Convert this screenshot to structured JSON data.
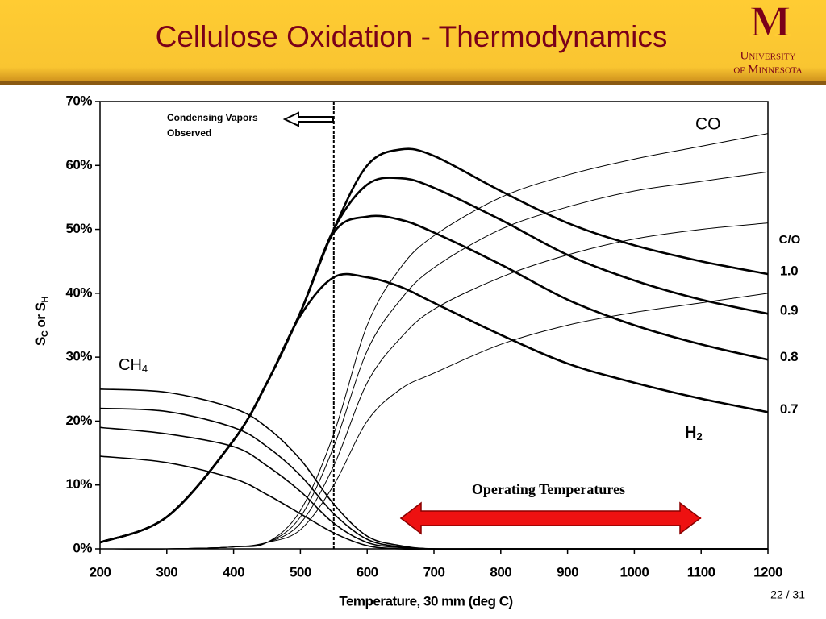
{
  "header": {
    "title": "Cellulose Oxidation - Thermodynamics",
    "logo_mark": "M",
    "logo_line1": "University",
    "logo_line2": "of Minnesota",
    "page": "22 / 31"
  },
  "chart_data": {
    "type": "line",
    "xlabel": "Temperature, 30 mm (deg C)",
    "ylabel_parts": [
      "S",
      "C",
      " or S",
      "H"
    ],
    "x": [
      200,
      300,
      400,
      450,
      500,
      550,
      600,
      650,
      700,
      800,
      900,
      1000,
      1100,
      1200
    ],
    "xlim": [
      200,
      1200
    ],
    "xticks": [
      200,
      300,
      400,
      500,
      600,
      700,
      800,
      900,
      1000,
      1100,
      1200
    ],
    "ylim": [
      0,
      70
    ],
    "yticks": [
      {
        "value": 0,
        "label": "0%"
      },
      {
        "value": 10,
        "label": "10%"
      },
      {
        "value": 20,
        "label": "20%"
      },
      {
        "value": 30,
        "label": "30%"
      },
      {
        "value": 40,
        "label": "40%"
      },
      {
        "value": 50,
        "label": "50%"
      },
      {
        "value": 60,
        "label": "60%"
      },
      {
        "value": 70,
        "label": "70%"
      }
    ],
    "legend_title": "C/O",
    "series": [
      {
        "name": "1.0",
        "color": "#000000",
        "line_width": 2.6,
        "values": [
          1,
          5,
          17,
          26,
          37,
          50,
          60,
          62.5,
          61.5,
          56,
          51,
          47.5,
          45,
          43
        ]
      },
      {
        "name": "0.9",
        "color": "#000000",
        "line_width": 2.6,
        "values": [
          1,
          5,
          17,
          26,
          37,
          50,
          57,
          58,
          56.5,
          51.5,
          46,
          42,
          39,
          36.8
        ]
      },
      {
        "name": "0.8",
        "color": "#000000",
        "line_width": 2.6,
        "values": [
          1,
          5,
          17,
          26,
          37,
          49.5,
          52,
          51.5,
          49.5,
          44.5,
          39,
          35,
          32,
          29.6
        ]
      },
      {
        "name": "0.7",
        "color": "#000000",
        "line_width": 2.6,
        "values": [
          1,
          5,
          17,
          26,
          36.5,
          42.5,
          42.5,
          41,
          38.5,
          33.5,
          29,
          26,
          23.5,
          21.4
        ]
      },
      {
        "color": "#000000",
        "line_width": 1,
        "values": [
          0,
          0,
          0.3,
          1,
          6,
          18,
          35,
          44,
          49,
          55,
          58.5,
          61,
          63,
          65
        ]
      },
      {
        "color": "#000000",
        "line_width": 1,
        "values": [
          0,
          0,
          0.3,
          1,
          5,
          16,
          31,
          39,
          44,
          50,
          53.5,
          56,
          57.5,
          59
        ]
      },
      {
        "color": "#000000",
        "line_width": 1,
        "values": [
          0,
          0,
          0.3,
          1,
          4,
          13,
          26,
          33,
          37.5,
          42.5,
          46,
          48.5,
          50,
          51
        ]
      },
      {
        "color": "#000000",
        "line_width": 1,
        "values": [
          0,
          0,
          0.3,
          1,
          3,
          10,
          20,
          25,
          27.5,
          32,
          35,
          37,
          38.5,
          40
        ]
      },
      {
        "color": "#000000",
        "line_width": 1.6,
        "values": [
          25,
          24.5,
          22,
          19,
          14,
          7,
          2,
          0.5,
          0,
          0,
          0,
          0,
          0,
          0
        ]
      },
      {
        "color": "#000000",
        "line_width": 1.6,
        "values": [
          22,
          21.5,
          19,
          16,
          11.5,
          5.5,
          1.5,
          0.3,
          0,
          0,
          0,
          0,
          0,
          0
        ]
      },
      {
        "color": "#000000",
        "line_width": 1.6,
        "values": [
          19,
          18,
          16,
          13,
          9,
          4,
          1,
          0.2,
          0,
          0,
          0,
          0,
          0,
          0
        ]
      },
      {
        "color": "#000000",
        "line_width": 1.6,
        "values": [
          14.5,
          13.5,
          11,
          8.5,
          5.5,
          2.5,
          0.5,
          0,
          0,
          0,
          0,
          0,
          0,
          0
        ]
      }
    ],
    "annotations": {
      "co": "CO",
      "ch4": [
        "CH",
        "4"
      ],
      "h2": [
        "H",
        "2"
      ],
      "condensing_line1": "Condensing Vapors",
      "condensing_line2": "Observed",
      "condensing_x": 550,
      "operating": "Operating Temperatures",
      "operating_range": [
        650,
        1100
      ]
    }
  }
}
